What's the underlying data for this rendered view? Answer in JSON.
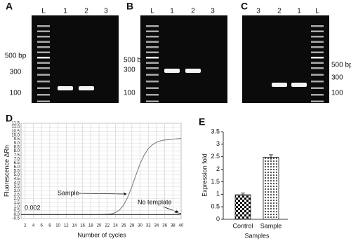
{
  "gels": [
    {
      "letter": "A",
      "lanes": [
        "L",
        "1",
        "2",
        "3"
      ],
      "markers": [
        "500 bp",
        "300",
        "100"
      ]
    },
    {
      "letter": "B",
      "lanes": [
        "L",
        "1",
        "2",
        "3"
      ],
      "markers": [
        "500 bp",
        "300",
        "100"
      ]
    },
    {
      "letter": "C",
      "lanes": [
        "3",
        "2",
        "1",
        "L"
      ],
      "markers": [
        "500 bp",
        "300",
        "100"
      ]
    }
  ],
  "chart_data": [
    {
      "type": "line",
      "letter": "D",
      "xlabel": "Number of cycles",
      "ylabel": "Fluorescence ΔRn",
      "x": [
        1,
        2,
        3,
        4,
        5,
        6,
        7,
        8,
        9,
        10,
        11,
        12,
        13,
        14,
        15,
        16,
        17,
        18,
        19,
        20,
        21,
        22,
        23,
        24,
        25,
        26,
        27,
        28,
        29,
        30,
        31,
        32,
        33,
        34,
        35,
        36,
        37,
        38,
        39,
        40
      ],
      "series": [
        {
          "name": "Sample",
          "color": "#888888",
          "values": [
            0,
            0,
            0,
            0,
            0,
            0,
            0,
            0,
            0,
            0,
            0,
            0,
            0,
            0,
            0,
            0,
            0,
            0,
            0,
            0,
            0.02,
            0.05,
            0.1,
            0.25,
            0.6,
            1.2,
            2.2,
            3.5,
            5,
            6.4,
            7.5,
            8.3,
            8.8,
            9.1,
            9.3,
            9.4,
            9.45,
            9.5,
            9.55,
            9.6
          ]
        },
        {
          "name": "No template",
          "color": "#333333",
          "values": [
            0,
            0,
            0,
            0,
            0,
            0,
            0,
            0,
            0,
            0,
            0,
            0,
            0,
            0,
            0,
            0,
            0,
            0,
            0,
            0,
            0,
            0,
            0,
            0,
            0,
            0,
            0,
            0,
            0,
            0,
            0,
            0,
            0,
            0,
            0,
            0,
            0,
            0,
            0.05,
            0.15
          ]
        }
      ],
      "threshold": 0.002,
      "xlim": [
        1,
        40
      ],
      "xticks": [
        2,
        4,
        6,
        8,
        10,
        12,
        14,
        16,
        18,
        20,
        22,
        24,
        26,
        28,
        30,
        32,
        34,
        36,
        38,
        40
      ],
      "ylim": [
        -0.5,
        11.5
      ],
      "yticks": [
        -0.5,
        {
          "value": 0,
          "label": "0.0"
        },
        0.5,
        {
          "value": 1,
          "label": "1.0"
        },
        1.5,
        {
          "value": 2,
          "label": "2.0"
        },
        2.5,
        {
          "value": 3,
          "label": "3.0"
        },
        3.5,
        {
          "value": 4,
          "label": "4.0"
        },
        4.5,
        {
          "value": 5,
          "label": "5.0"
        },
        5.5,
        {
          "value": 6,
          "label": "6.0"
        },
        6.5,
        {
          "value": 7,
          "label": "7.0"
        },
        7.5,
        {
          "value": 8,
          "label": "8.0"
        },
        8.5,
        {
          "value": 9,
          "label": "9.0"
        },
        9.5,
        {
          "value": 10,
          "label": "10.0"
        },
        10.5,
        {
          "value": 11,
          "label": "11.0"
        },
        11.5
      ],
      "grid": true
    },
    {
      "type": "bar",
      "letter": "E",
      "xlabel": "Samples",
      "ylabel": "Expression fold",
      "categories": [
        "Control",
        "Sample"
      ],
      "values": [
        0.98,
        2.48
      ],
      "errors": [
        0.07,
        0.1
      ],
      "ylim": [
        0,
        3.5
      ],
      "yticks": [
        0,
        0.5,
        1,
        1.5,
        2,
        2.5,
        3,
        3.5
      ]
    }
  ]
}
